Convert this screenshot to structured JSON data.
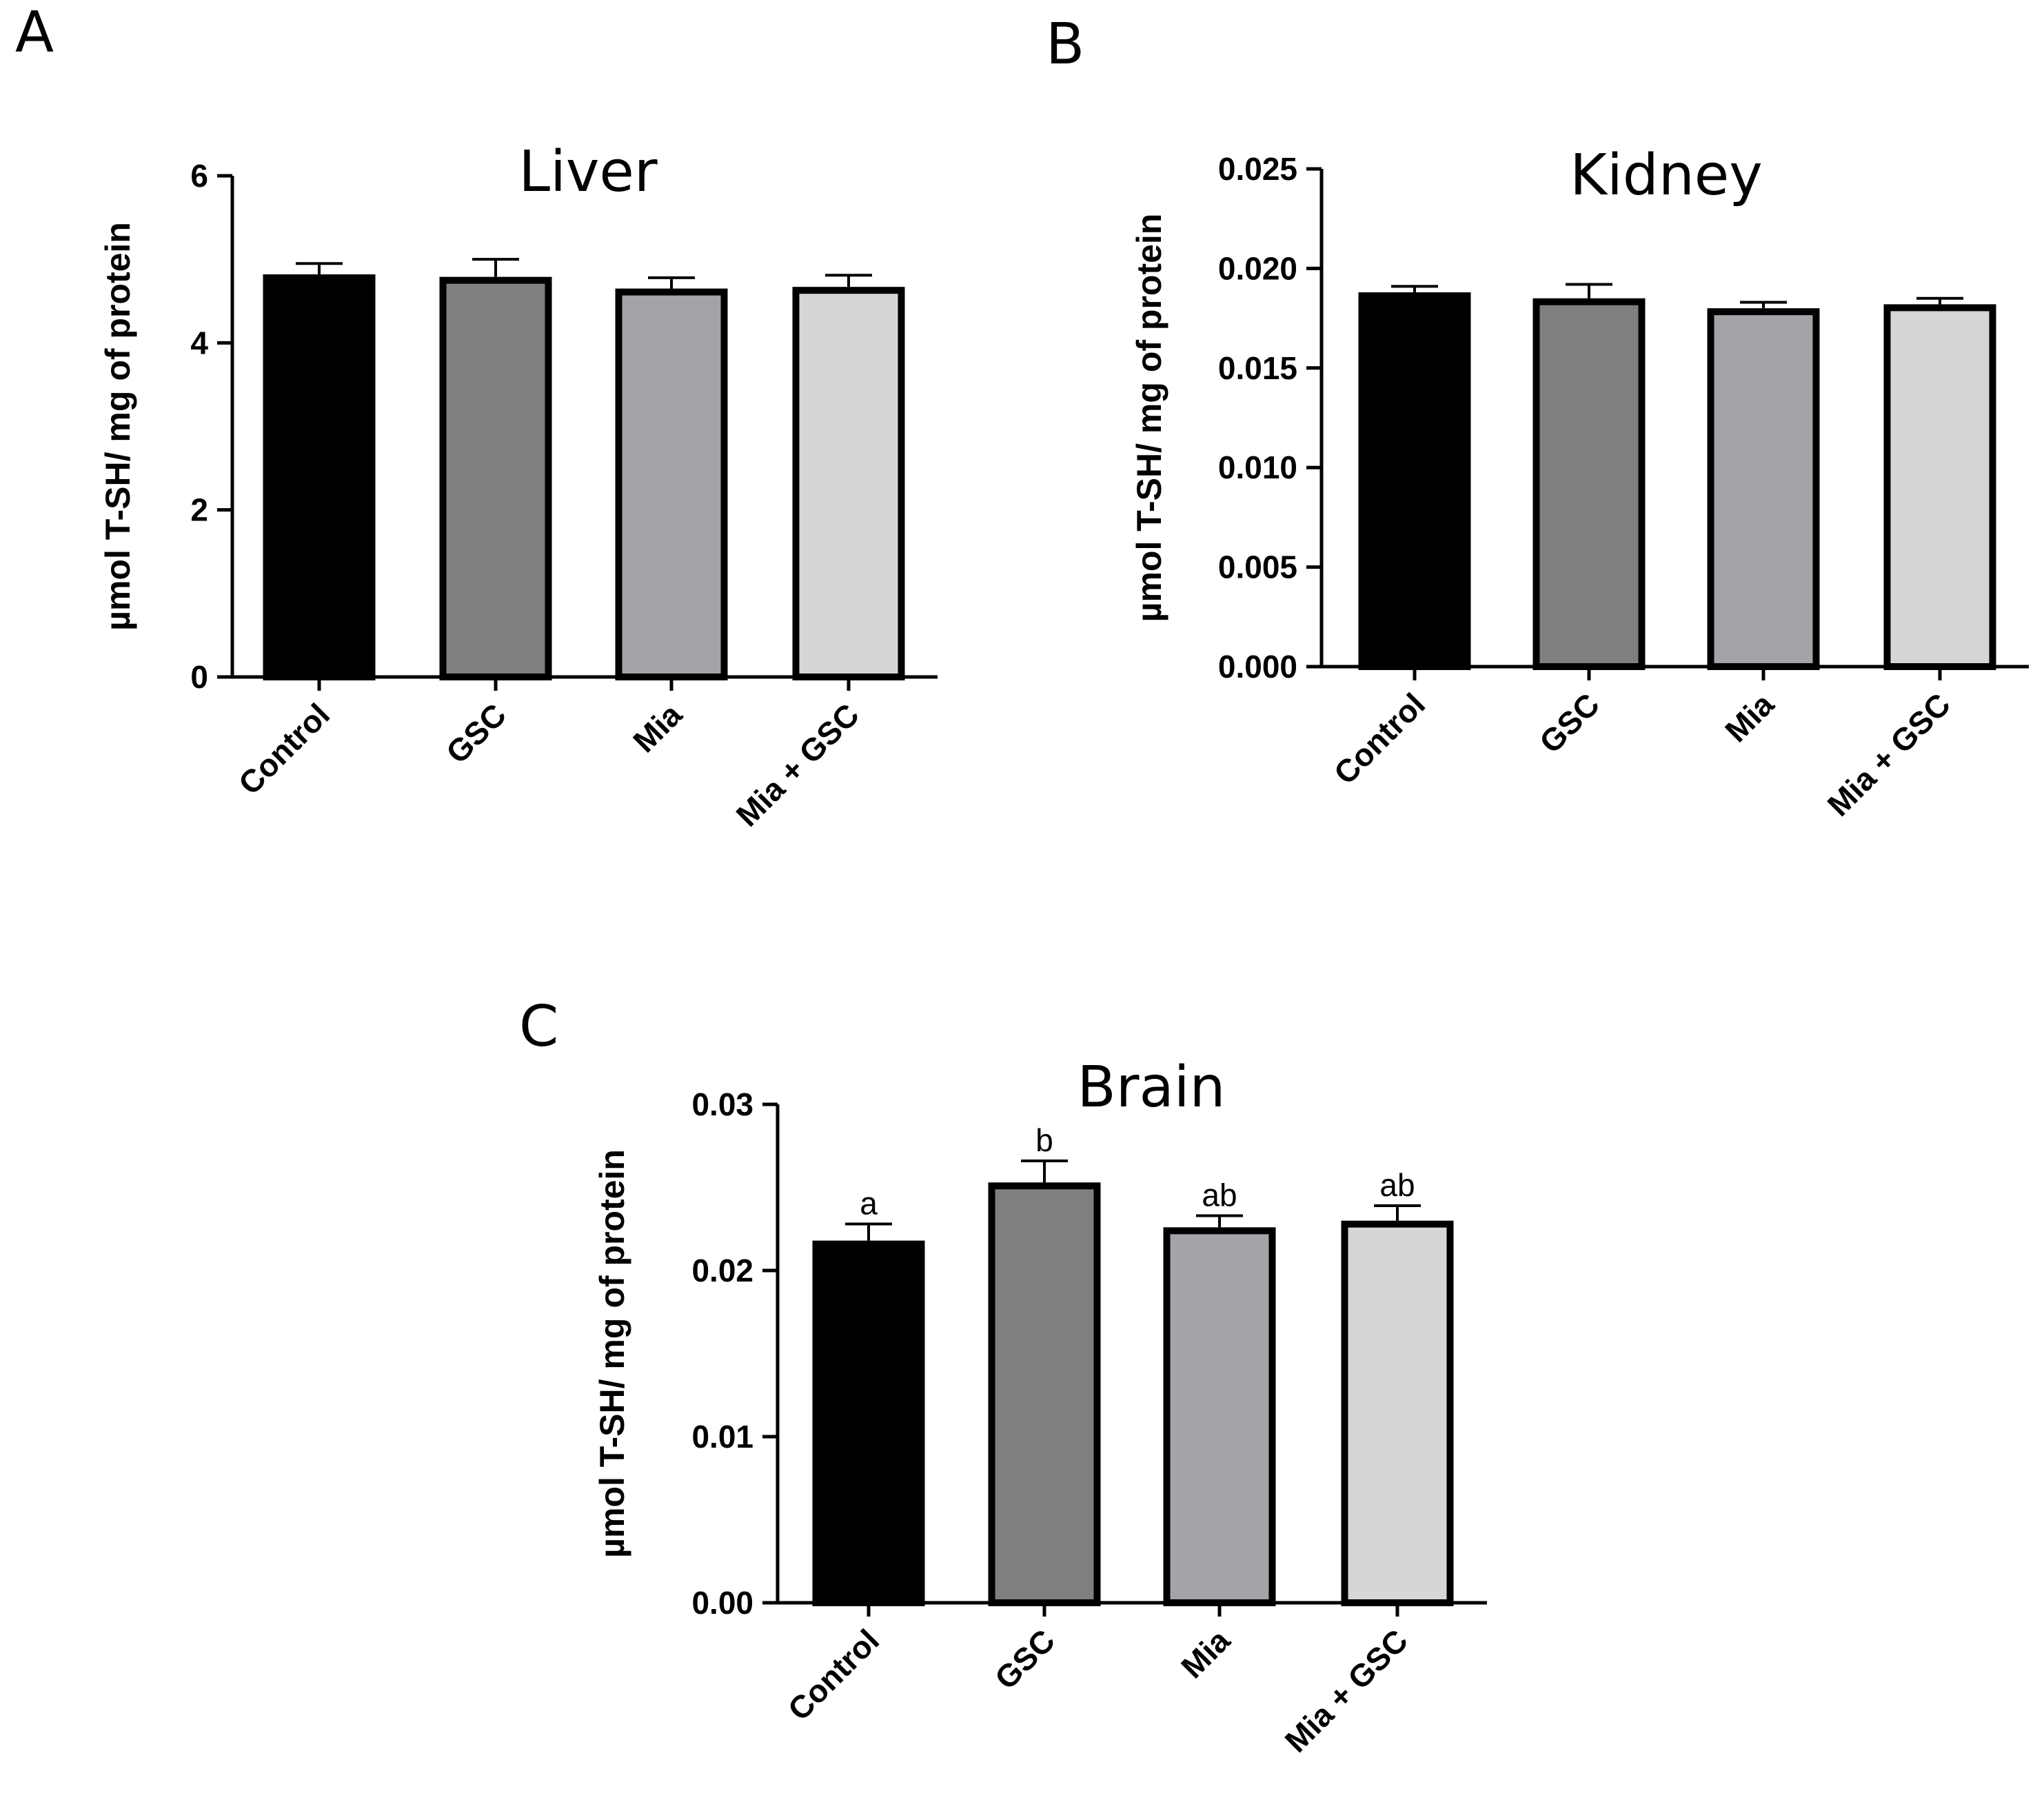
{
  "chart_data": [
    {
      "type": "bar",
      "panel": "A",
      "title": "Liver",
      "xlabel": "",
      "ylabel": "µmol T-SH/ mg of protein",
      "ylim": [
        0,
        6
      ],
      "yticks": [
        "0",
        "2",
        "4",
        "6"
      ],
      "ytick_values": [
        0,
        2,
        4,
        6
      ],
      "categories": [
        "Control",
        "GSC",
        "Mia",
        "Mia + GSC"
      ],
      "values": [
        4.82,
        4.79,
        4.65,
        4.67
      ],
      "errors": [
        0.13,
        0.21,
        0.13,
        0.14
      ],
      "colors": [
        "#000000",
        "#7f7f7f",
        "#a3a3a8",
        "#d6d6d6"
      ],
      "annotations": []
    },
    {
      "type": "bar",
      "panel": "B",
      "title": "Kidney",
      "xlabel": "",
      "ylabel": "µmol T-SH/ mg of protein",
      "ylim": [
        0,
        0.025
      ],
      "yticks": [
        "0.000",
        "0.005",
        "0.010",
        "0.015",
        "0.020",
        "0.025"
      ],
      "ytick_values": [
        0,
        0.005,
        0.01,
        0.015,
        0.02,
        0.025
      ],
      "categories": [
        "Control",
        "GSC",
        "Mia",
        "Mia + GSC"
      ],
      "values": [
        0.0188,
        0.0185,
        0.018,
        0.0182
      ],
      "errors": [
        0.0003,
        0.0007,
        0.0003,
        0.0003
      ],
      "colors": [
        "#000000",
        "#7f7f7f",
        "#a3a3a8",
        "#d6d6d6"
      ],
      "annotations": []
    },
    {
      "type": "bar",
      "panel": "C",
      "title": "Brain",
      "xlabel": "",
      "ylabel": "µmol T-SH/ mg of protein",
      "ylim": [
        0,
        0.03
      ],
      "yticks": [
        "0.00",
        "0.01",
        "0.02",
        "0.03"
      ],
      "ytick_values": [
        0,
        0.01,
        0.02,
        0.03
      ],
      "categories": [
        "Control",
        "GSC",
        "Mia",
        "Mia + GSC"
      ],
      "values": [
        0.0218,
        0.0253,
        0.0226,
        0.023
      ],
      "errors": [
        0.001,
        0.0013,
        0.0007,
        0.0009
      ],
      "colors": [
        "#000000",
        "#7f7f7f",
        "#a3a3a8",
        "#d6d6d6"
      ],
      "annotations": [
        "a",
        "b",
        "ab",
        "ab"
      ]
    }
  ]
}
